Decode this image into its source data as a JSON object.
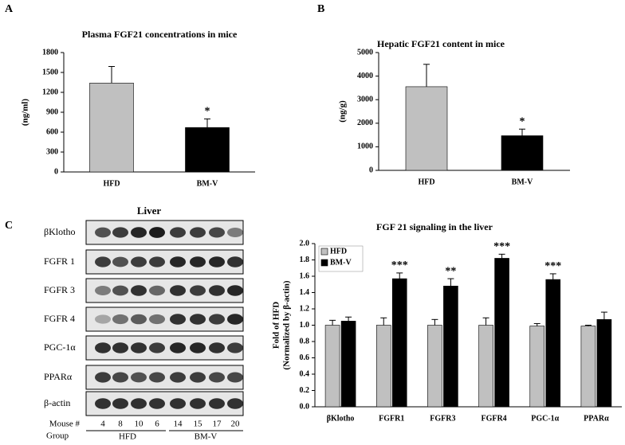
{
  "panel_labels": [
    "A",
    "B",
    "C"
  ],
  "chart_data": [
    {
      "type": "bar",
      "title": "Plasma FGF21  concentrations in mice",
      "ylabel": [
        "(ng/ml)"
      ],
      "categories": [
        "HFD",
        "BM-V"
      ],
      "values": [
        1340,
        670
      ],
      "errors": [
        250,
        130
      ],
      "colors": [
        "#c0c0c0",
        "#000000"
      ],
      "significance": [
        null,
        "*"
      ],
      "ylim": [
        0,
        1800
      ],
      "yticks": [
        0,
        300,
        600,
        900,
        1200,
        1500,
        1800
      ]
    },
    {
      "type": "bar",
      "title": "Hepatic FGF21 content in mice",
      "ylabel": [
        "(ng/g)"
      ],
      "categories": [
        "HFD",
        "BM-V"
      ],
      "values": [
        3550,
        1470
      ],
      "errors": [
        950,
        280
      ],
      "colors": [
        "#c0c0c0",
        "#000000"
      ],
      "significance": [
        null,
        "*"
      ],
      "ylim": [
        0,
        5000
      ],
      "yticks": [
        0,
        1000,
        2000,
        3000,
        4000,
        5000
      ]
    },
    {
      "type": "bar",
      "title": "FGF 21 signaling in the liver",
      "ylabel": [
        "Fold of HFD",
        "(Normalized by β-actin)"
      ],
      "categories": [
        "βKlotho",
        "FGFR1",
        "FGFR3",
        "FGFR4",
        "PGC-1α",
        "PPARα"
      ],
      "series": [
        {
          "name": "HFD",
          "color": "#c0c0c0",
          "values": [
            1.0,
            1.0,
            1.0,
            1.0,
            0.99,
            0.99
          ],
          "errors": [
            0.06,
            0.09,
            0.07,
            0.09,
            0.03,
            0.01
          ]
        },
        {
          "name": "BM-V",
          "color": "#000000",
          "values": [
            1.05,
            1.57,
            1.48,
            1.82,
            1.56,
            1.07
          ],
          "errors": [
            0.05,
            0.07,
            0.09,
            0.05,
            0.07,
            0.09
          ]
        }
      ],
      "significance": [
        null,
        "***",
        "**",
        "***",
        "***",
        null
      ],
      "legend": "top-left",
      "ylim": [
        0,
        2
      ],
      "yticks": [
        {
          "value": 0,
          "label": "0.0"
        },
        0.2,
        0.4,
        0.6,
        0.8,
        {
          "value": 1,
          "label": "1.0"
        },
        1.2,
        1.4,
        1.6,
        1.8,
        {
          "value": 2,
          "label": "2.0"
        }
      ]
    }
  ],
  "blot": {
    "title": "Liver",
    "rows": [
      "βKlotho",
      "FGFR 1",
      "FGFR 3",
      "FGFR 4",
      "PGC-1α",
      "PPARα",
      "β-actin"
    ],
    "mouse_label": "Mouse #",
    "mice": [
      "4",
      "8",
      "10",
      "6",
      "14",
      "15",
      "17",
      "20"
    ],
    "group_label": "Group",
    "groups": [
      "HFD",
      "BM-V"
    ]
  }
}
